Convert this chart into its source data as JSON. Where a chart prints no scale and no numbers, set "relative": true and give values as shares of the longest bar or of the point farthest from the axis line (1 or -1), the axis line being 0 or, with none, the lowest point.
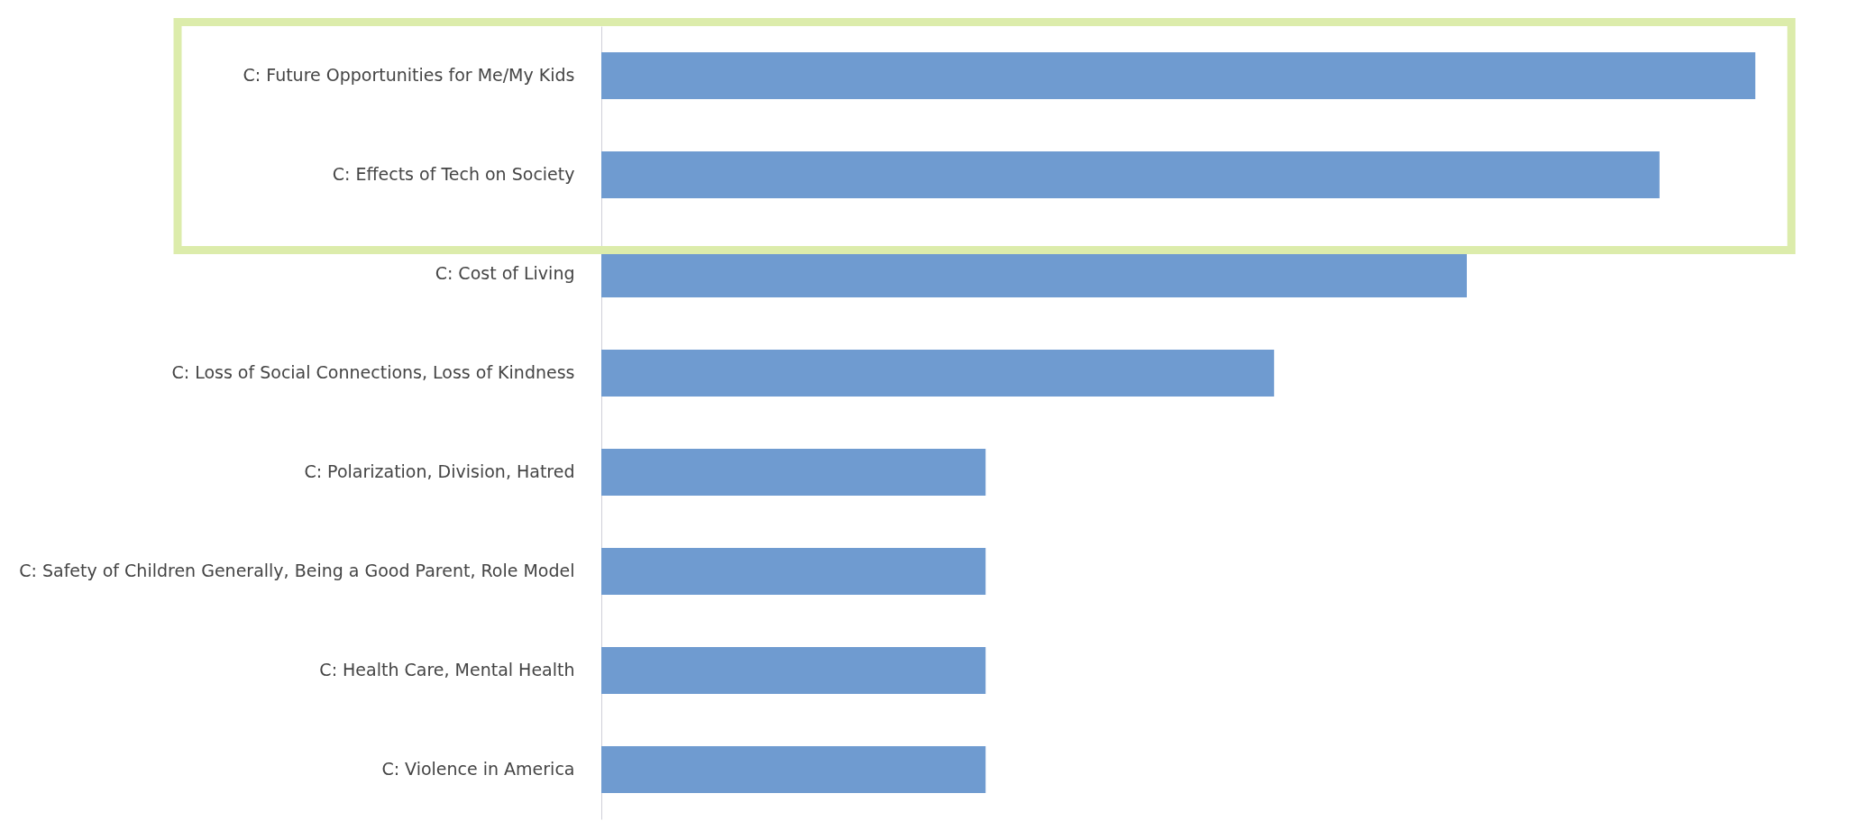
{
  "chart_data": {
    "type": "bar",
    "orientation": "horizontal",
    "relative": true,
    "categories": [
      "C: Future Opportunities for Me/My Kids",
      "C: Effects of Tech on Society",
      "C: Cost of Living",
      "C: Loss of Social Connections, Loss of Kindness",
      "C: Polarization, Division, Hatred",
      "C: Safety of Children Generally, Being a Good Parent, Role Model",
      "C: Health Care, Mental Health",
      "C: Violence in America"
    ],
    "values": [
      1,
      0.917,
      0.75,
      0.583,
      0.333,
      0.333,
      0.333,
      0.333
    ],
    "color": "#6f9bd0"
  }
}
